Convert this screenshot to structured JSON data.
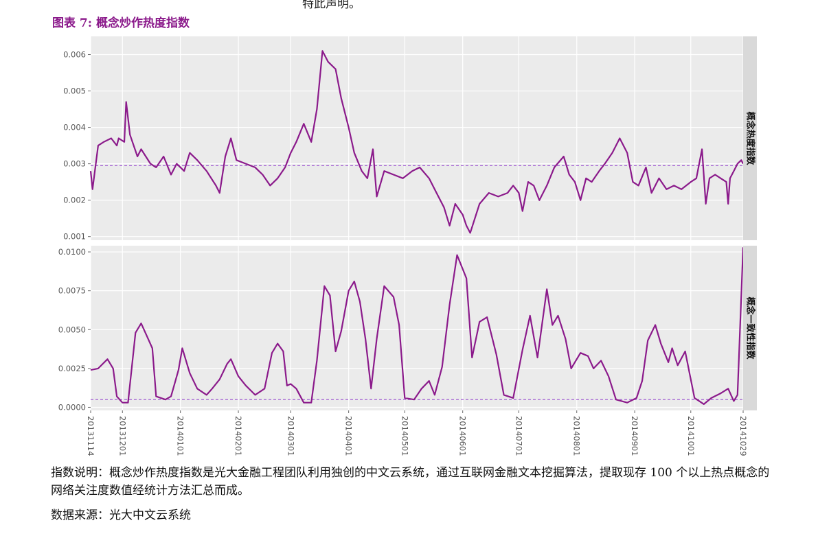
{
  "page": {
    "top_cut_text": "特此声明。",
    "figure_title": "图表 7: 概念炒作热度指数",
    "description": "指数说明：概念炒作热度指数是光大金融工程团队利用独创的中文云系统，通过互联网金融文本挖掘算法，提取现存 100 个以上热点概念的网络关注度数值经统计方法汇总而成。",
    "source": "数据来源：光大中文云系统"
  },
  "colors": {
    "line": "#8b1a8b",
    "reference": "#9a4fd0",
    "panel_bg": "#ebebeb",
    "strip_bg": "#d9d9d9"
  },
  "chart_data": {
    "type": "line",
    "x_range": [
      "20131114",
      "20141029"
    ],
    "x_tick_labels": [
      "20131114",
      "20131201",
      "20140101",
      "20140201",
      "20140301",
      "20140401",
      "20140501",
      "20140601",
      "20140701",
      "20140801",
      "20140901",
      "20141001",
      "20141029"
    ],
    "panels": [
      {
        "strip_label": "概念热度指数",
        "ylim": [
          0.0009,
          0.0065
        ],
        "y_ticks": [
          0.001,
          0.002,
          0.003,
          0.004,
          0.005,
          0.006
        ],
        "y_tick_labels": [
          "0.001",
          "0.002",
          "0.003",
          "0.004",
          "0.005",
          "0.006"
        ],
        "reference_line": 0.00295,
        "points": [
          [
            "20131114",
            0.0028
          ],
          [
            "20131115",
            0.0023
          ],
          [
            "20131118",
            0.0035
          ],
          [
            "20131121",
            0.0036
          ],
          [
            "20131125",
            0.0037
          ],
          [
            "20131128",
            0.0035
          ],
          [
            "20131129",
            0.0037
          ],
          [
            "20131202",
            0.0036
          ],
          [
            "20131203",
            0.0047
          ],
          [
            "20131205",
            0.0038
          ],
          [
            "20131209",
            0.0032
          ],
          [
            "20131211",
            0.0034
          ],
          [
            "20131216",
            0.003
          ],
          [
            "20131219",
            0.0029
          ],
          [
            "20131223",
            0.0032
          ],
          [
            "20131227",
            0.0027
          ],
          [
            "20131230",
            0.003
          ],
          [
            "20140103",
            0.0028
          ],
          [
            "20140106",
            0.0033
          ],
          [
            "20140110",
            0.0031
          ],
          [
            "20140115",
            0.0028
          ],
          [
            "20140120",
            0.0024
          ],
          [
            "20140122",
            0.0022
          ],
          [
            "20140125",
            0.0032
          ],
          [
            "20140128",
            0.0037
          ],
          [
            "20140131",
            0.0031
          ],
          [
            "20140205",
            0.003
          ],
          [
            "20140210",
            0.0029
          ],
          [
            "20140214",
            0.0027
          ],
          [
            "20140218",
            0.0024
          ],
          [
            "20140222",
            0.0026
          ],
          [
            "20140226",
            0.0029
          ],
          [
            "20140301",
            0.0033
          ],
          [
            "20140304",
            0.0036
          ],
          [
            "20140308",
            0.0041
          ],
          [
            "20140312",
            0.0036
          ],
          [
            "20140315",
            0.0045
          ],
          [
            "20140318",
            0.0061
          ],
          [
            "20140321",
            0.0058
          ],
          [
            "20140325",
            0.0056
          ],
          [
            "20140328",
            0.0048
          ],
          [
            "20140401",
            0.004
          ],
          [
            "20140404",
            0.0033
          ],
          [
            "20140408",
            0.0028
          ],
          [
            "20140411",
            0.0026
          ],
          [
            "20140414",
            0.0034
          ],
          [
            "20140416",
            0.0021
          ],
          [
            "20140420",
            0.0028
          ],
          [
            "20140425",
            0.0027
          ],
          [
            "20140430",
            0.0026
          ],
          [
            "20140505",
            0.0028
          ],
          [
            "20140509",
            0.0029
          ],
          [
            "20140514",
            0.0026
          ],
          [
            "20140518",
            0.0022
          ],
          [
            "20140522",
            0.0018
          ],
          [
            "20140525",
            0.0013
          ],
          [
            "20140528",
            0.0019
          ],
          [
            "20140601",
            0.0016
          ],
          [
            "20140603",
            0.0013
          ],
          [
            "20140605",
            0.0011
          ],
          [
            "20140610",
            0.0019
          ],
          [
            "20140615",
            0.0022
          ],
          [
            "20140620",
            0.0021
          ],
          [
            "20140625",
            0.0022
          ],
          [
            "20140628",
            0.0024
          ],
          [
            "20140701",
            0.0022
          ],
          [
            "20140703",
            0.0017
          ],
          [
            "20140706",
            0.0025
          ],
          [
            "20140709",
            0.0024
          ],
          [
            "20140712",
            0.002
          ],
          [
            "20140716",
            0.0024
          ],
          [
            "20140720",
            0.0029
          ],
          [
            "20140725",
            0.0032
          ],
          [
            "20140728",
            0.0027
          ],
          [
            "20140731",
            0.0025
          ],
          [
            "20140803",
            0.002
          ],
          [
            "20140806",
            0.0026
          ],
          [
            "20140809",
            0.0025
          ],
          [
            "20140813",
            0.0028
          ],
          [
            "20140816",
            0.003
          ],
          [
            "20140820",
            0.0033
          ],
          [
            "20140824",
            0.0037
          ],
          [
            "20140828",
            0.0033
          ],
          [
            "20140831",
            0.0025
          ],
          [
            "20140903",
            0.0024
          ],
          [
            "20140907",
            0.0029
          ],
          [
            "20140910",
            0.0022
          ],
          [
            "20140914",
            0.0026
          ],
          [
            "20140918",
            0.0023
          ],
          [
            "20140922",
            0.0024
          ],
          [
            "20140926",
            0.0023
          ],
          [
            "20141001",
            0.0025
          ],
          [
            "20141004",
            0.0026
          ],
          [
            "20141007",
            0.0034
          ],
          [
            "20141009",
            0.0019
          ],
          [
            "20141011",
            0.0026
          ],
          [
            "20141014",
            0.0027
          ],
          [
            "20141017",
            0.0026
          ],
          [
            "20141020",
            0.0025
          ],
          [
            "20141021",
            0.0019
          ],
          [
            "20141022",
            0.0026
          ],
          [
            "20141024",
            0.0028
          ],
          [
            "20141026",
            0.003
          ],
          [
            "20141028",
            0.0031
          ],
          [
            "20141029",
            0.003
          ]
        ]
      },
      {
        "strip_label": "概念一致性指数",
        "ylim": [
          -0.0002,
          0.0104
        ],
        "y_ticks": [
          0.0,
          0.0025,
          0.005,
          0.0075,
          0.01
        ],
        "y_tick_labels": [
          "0.0000",
          "0.0025",
          "0.0050",
          "0.0075",
          "0.0100"
        ],
        "reference_line": 0.0005,
        "points": [
          [
            "20131114",
            0.0024
          ],
          [
            "20131118",
            0.0025
          ],
          [
            "20131123",
            0.0031
          ],
          [
            "20131126",
            0.0025
          ],
          [
            "20131128",
            0.0007
          ],
          [
            "20131201",
            0.0003
          ],
          [
            "20131204",
            0.0003
          ],
          [
            "20131208",
            0.0048
          ],
          [
            "20131211",
            0.0054
          ],
          [
            "20131214",
            0.0046
          ],
          [
            "20131217",
            0.0038
          ],
          [
            "20131219",
            0.0007
          ],
          [
            "20131224",
            0.0005
          ],
          [
            "20131227",
            0.0007
          ],
          [
            "20131231",
            0.0024
          ],
          [
            "20140102",
            0.0038
          ],
          [
            "20140106",
            0.0022
          ],
          [
            "20140110",
            0.0012
          ],
          [
            "20140115",
            0.0008
          ],
          [
            "20140118",
            0.0012
          ],
          [
            "20140122",
            0.0018
          ],
          [
            "20140126",
            0.0028
          ],
          [
            "20140128",
            0.0031
          ],
          [
            "20140201",
            0.002
          ],
          [
            "20140205",
            0.0014
          ],
          [
            "20140210",
            0.0008
          ],
          [
            "20140215",
            0.0012
          ],
          [
            "20140219",
            0.0035
          ],
          [
            "20140222",
            0.0041
          ],
          [
            "20140225",
            0.0036
          ],
          [
            "20140227",
            0.0014
          ],
          [
            "20140301",
            0.0015
          ],
          [
            "20140304",
            0.0012
          ],
          [
            "20140308",
            0.0003
          ],
          [
            "20140312",
            0.0003
          ],
          [
            "20140315",
            0.003
          ],
          [
            "20140319",
            0.0078
          ],
          [
            "20140322",
            0.0072
          ],
          [
            "20140325",
            0.0036
          ],
          [
            "20140328",
            0.0049
          ],
          [
            "20140401",
            0.0075
          ],
          [
            "20140404",
            0.0081
          ],
          [
            "20140407",
            0.0068
          ],
          [
            "20140410",
            0.0044
          ],
          [
            "20140413",
            0.0012
          ],
          [
            "20140416",
            0.0044
          ],
          [
            "20140420",
            0.0078
          ],
          [
            "20140425",
            0.0071
          ],
          [
            "20140428",
            0.0053
          ],
          [
            "20140501",
            0.0006
          ],
          [
            "20140506",
            0.0005
          ],
          [
            "20140510",
            0.0012
          ],
          [
            "20140514",
            0.0017
          ],
          [
            "20140517",
            0.0008
          ],
          [
            "20140521",
            0.0026
          ],
          [
            "20140525",
            0.0066
          ],
          [
            "20140529",
            0.0098
          ],
          [
            "20140603",
            0.0083
          ],
          [
            "20140606",
            0.0032
          ],
          [
            "20140610",
            0.0055
          ],
          [
            "20140614",
            0.0058
          ],
          [
            "20140619",
            0.0034
          ],
          [
            "20140623",
            0.0008
          ],
          [
            "20140628",
            0.0006
          ],
          [
            "20140703",
            0.0037
          ],
          [
            "20140707",
            0.0059
          ],
          [
            "20140711",
            0.0032
          ],
          [
            "20140716",
            0.0076
          ],
          [
            "20140719",
            0.0053
          ],
          [
            "20140722",
            0.0059
          ],
          [
            "20140726",
            0.0044
          ],
          [
            "20140729",
            0.0025
          ],
          [
            "20140803",
            0.0035
          ],
          [
            "20140807",
            0.0033
          ],
          [
            "20140810",
            0.0025
          ],
          [
            "20140814",
            0.003
          ],
          [
            "20140818",
            0.002
          ],
          [
            "20140822",
            0.0005
          ],
          [
            "20140828",
            0.0003
          ],
          [
            "20140902",
            0.0006
          ],
          [
            "20140905",
            0.0017
          ],
          [
            "20140908",
            0.0043
          ],
          [
            "20140912",
            0.0053
          ],
          [
            "20140915",
            0.0041
          ],
          [
            "20140919",
            0.0029
          ],
          [
            "20140921",
            0.0038
          ],
          [
            "20140924",
            0.0027
          ],
          [
            "20140928",
            0.0036
          ],
          [
            "20141003",
            0.0006
          ],
          [
            "20141008",
            0.0002
          ],
          [
            "20141012",
            0.0006
          ],
          [
            "20141017",
            0.0009
          ],
          [
            "20141021",
            0.0012
          ],
          [
            "20141024",
            0.0004
          ],
          [
            "20141026",
            0.0008
          ],
          [
            "20141029",
            0.0103
          ]
        ]
      }
    ]
  }
}
